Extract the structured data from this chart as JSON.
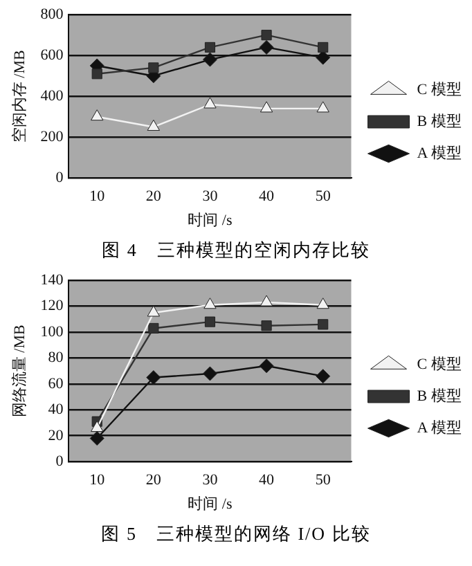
{
  "chart_data": [
    {
      "type": "line",
      "title": "图 4　三种模型的空闲内存比较",
      "xlabel": "时间 /s",
      "ylabel": "空闲内存 /MB",
      "categories": [
        "10",
        "20",
        "30",
        "40",
        "50"
      ],
      "ylim": [
        0,
        800
      ],
      "yticks": [
        0,
        200,
        400,
        600,
        800
      ],
      "grid": "y",
      "legend": "right",
      "line_style": "solid",
      "series": [
        {
          "name": "C 模型",
          "color": "#f2f2f2",
          "marker": "triangle",
          "values": [
            300,
            250,
            360,
            340,
            340
          ]
        },
        {
          "name": "B 模型",
          "color": "#333333",
          "marker": "square",
          "values": [
            510,
            540,
            640,
            700,
            640
          ]
        },
        {
          "name": "A 模型",
          "color": "#111111",
          "marker": "diamond",
          "values": [
            550,
            500,
            580,
            640,
            590
          ]
        }
      ]
    },
    {
      "type": "line",
      "title": "图 5　三种模型的网络 I/O 比较",
      "xlabel": "时间 /s",
      "ylabel": "网络流量 /MB",
      "categories": [
        "10",
        "20",
        "30",
        "40",
        "50"
      ],
      "ylim": [
        0,
        140
      ],
      "yticks": [
        0,
        20,
        40,
        60,
        80,
        100,
        120,
        140
      ],
      "grid": "y",
      "legend": "right",
      "line_style": "solid",
      "series": [
        {
          "name": "C 模型",
          "color": "#f2f2f2",
          "marker": "triangle",
          "values": [
            26,
            115,
            121,
            123,
            121
          ]
        },
        {
          "name": "B 模型",
          "color": "#333333",
          "marker": "square",
          "values": [
            31,
            103,
            108,
            105,
            106
          ]
        },
        {
          "name": "A 模型",
          "color": "#111111",
          "marker": "diamond",
          "values": [
            18,
            65,
            68,
            74,
            66
          ]
        }
      ]
    }
  ]
}
